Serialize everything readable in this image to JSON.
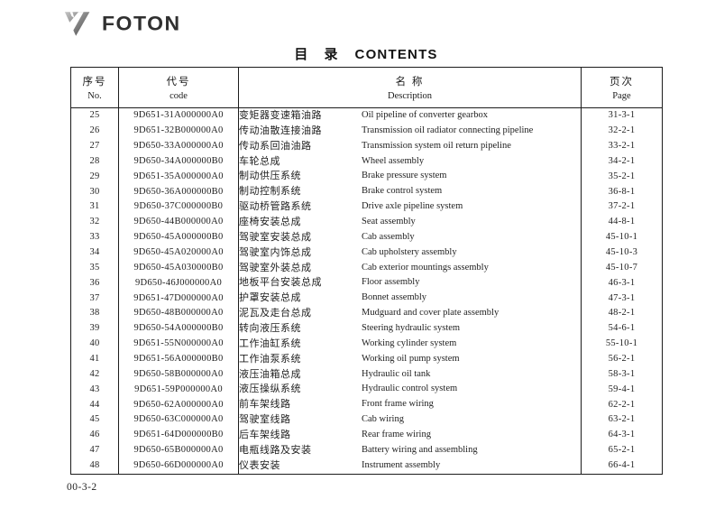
{
  "colors": {
    "text": "#1e1e1e",
    "border": "#1c1c1c",
    "logo_gray": "#303030"
  },
  "logo": {
    "brand": "FOTON",
    "emblem_icon": "foton-emblem-icon"
  },
  "title": {
    "zh": "目 录",
    "en": "CONTENTS"
  },
  "table": {
    "headers": {
      "no": {
        "zh": "序号",
        "en": "No."
      },
      "code": {
        "zh": "代号",
        "en": "code"
      },
      "description": {
        "zh": "名 称",
        "en": "Description"
      },
      "page": {
        "zh": "页次",
        "en": "Page"
      }
    },
    "rows": [
      {
        "no": "25",
        "code": "9D651-31A000000A0",
        "zh": "变矩器变速箱油路",
        "en": "Oil pipeline of converter gearbox",
        "page": "31-3-1"
      },
      {
        "no": "26",
        "code": "9D651-32B000000A0",
        "zh": "传动油散连接油路",
        "en": "Transmission oil radiator connecting pipeline",
        "page": "32-2-1"
      },
      {
        "no": "27",
        "code": "9D650-33A000000A0",
        "zh": "传动系回油油路",
        "en": "Transmission system oil return pipeline",
        "page": "33-2-1"
      },
      {
        "no": "28",
        "code": "9D650-34A000000B0",
        "zh": "车轮总成",
        "en": "Wheel assembly",
        "page": "34-2-1"
      },
      {
        "no": "29",
        "code": "9D651-35A000000A0",
        "zh": "制动供压系统",
        "en": "Brake pressure system",
        "page": "35-2-1"
      },
      {
        "no": "30",
        "code": "9D650-36A000000B0",
        "zh": "制动控制系统",
        "en": "Brake control system",
        "page": "36-8-1"
      },
      {
        "no": "31",
        "code": "9D650-37C000000B0",
        "zh": "驱动桥管路系统",
        "en": "Drive axle pipeline system",
        "page": "37-2-1"
      },
      {
        "no": "32",
        "code": "9D650-44B000000A0",
        "zh": "座椅安装总成",
        "en": "Seat assembly",
        "page": "44-8-1"
      },
      {
        "no": "33",
        "code": "9D650-45A000000B0",
        "zh": "驾驶室安装总成",
        "en": "Cab assembly",
        "page": "45-10-1"
      },
      {
        "no": "34",
        "code": "9D650-45A020000A0",
        "zh": "驾驶室内饰总成",
        "en": "Cab upholstery assembly",
        "page": "45-10-3"
      },
      {
        "no": "35",
        "code": "9D650-45A030000B0",
        "zh": "驾驶室外装总成",
        "en": "Cab exterior mountings assembly",
        "page": "45-10-7"
      },
      {
        "no": "36",
        "code": "9D650-46J000000A0",
        "zh": "地板平台安装总成",
        "en": "Floor assembly",
        "page": "46-3-1"
      },
      {
        "no": "37",
        "code": "9D651-47D000000A0",
        "zh": "护罩安装总成",
        "en": "Bonnet assembly",
        "page": "47-3-1"
      },
      {
        "no": "38",
        "code": "9D650-48B000000A0",
        "zh": "泥瓦及走台总成",
        "en": "Mudguard and cover plate assembly",
        "page": "48-2-1"
      },
      {
        "no": "39",
        "code": "9D650-54A000000B0",
        "zh": "转向液压系统",
        "en": "Steering hydraulic system",
        "page": "54-6-1"
      },
      {
        "no": "40",
        "code": "9D651-55N000000A0",
        "zh": "工作油缸系统",
        "en": "Working cylinder system",
        "page": "55-10-1"
      },
      {
        "no": "41",
        "code": "9D651-56A000000B0",
        "zh": "工作油泵系统",
        "en": "Working oil pump system",
        "page": "56-2-1"
      },
      {
        "no": "42",
        "code": "9D650-58B000000A0",
        "zh": "液压油箱总成",
        "en": "Hydraulic oil tank",
        "page": "58-3-1"
      },
      {
        "no": "43",
        "code": "9D651-59P000000A0",
        "zh": "液压操纵系统",
        "en": "Hydraulic control system",
        "page": "59-4-1"
      },
      {
        "no": "44",
        "code": "9D650-62A000000A0",
        "zh": "前车架线路",
        "en": "Front frame wiring",
        "page": "62-2-1"
      },
      {
        "no": "45",
        "code": "9D650-63C000000A0",
        "zh": "驾驶室线路",
        "en": "Cab wiring",
        "page": "63-2-1"
      },
      {
        "no": "46",
        "code": "9D651-64D000000B0",
        "zh": "后车架线路",
        "en": "Rear frame wiring",
        "page": "64-3-1"
      },
      {
        "no": "47",
        "code": "9D650-65B000000A0",
        "zh": "电瓶线路及安装",
        "en": "Battery wiring and assembling",
        "page": "65-2-1"
      },
      {
        "no": "48",
        "code": "9D650-66D000000A0",
        "zh": "仪表安装",
        "en": "Instrument assembly",
        "page": "66-4-1"
      }
    ]
  },
  "footer": {
    "page_code": "00-3-2"
  }
}
